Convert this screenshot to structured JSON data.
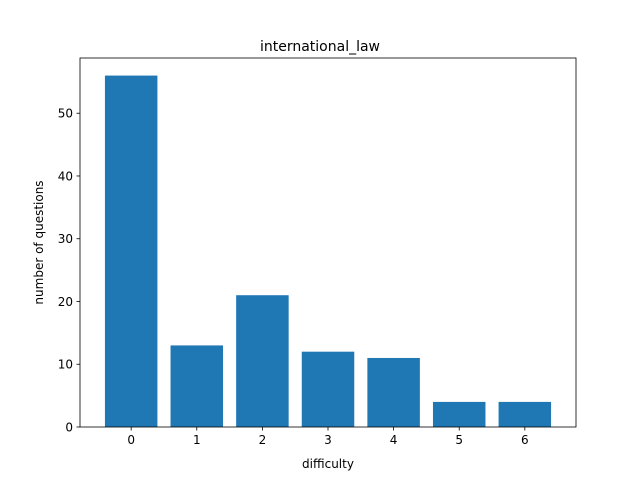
{
  "chart_data": {
    "type": "bar",
    "title": "international_law",
    "xlabel": "difficulty",
    "ylabel": "number of questions",
    "categories": [
      "0",
      "1",
      "2",
      "3",
      "4",
      "5",
      "6"
    ],
    "x": [
      0,
      1,
      2,
      3,
      4,
      5,
      6
    ],
    "values": [
      56,
      13,
      21,
      12,
      11,
      4,
      4
    ],
    "xlim": [
      -0.78,
      6.78
    ],
    "ylim": [
      0,
      58.8
    ],
    "yticks": [
      0,
      10,
      20,
      30,
      40,
      50
    ],
    "ytick_labels": [
      "0",
      "10",
      "20",
      "30",
      "40",
      "50"
    ],
    "grid": false,
    "legend": "none",
    "bar_color": "#1f77b4"
  }
}
